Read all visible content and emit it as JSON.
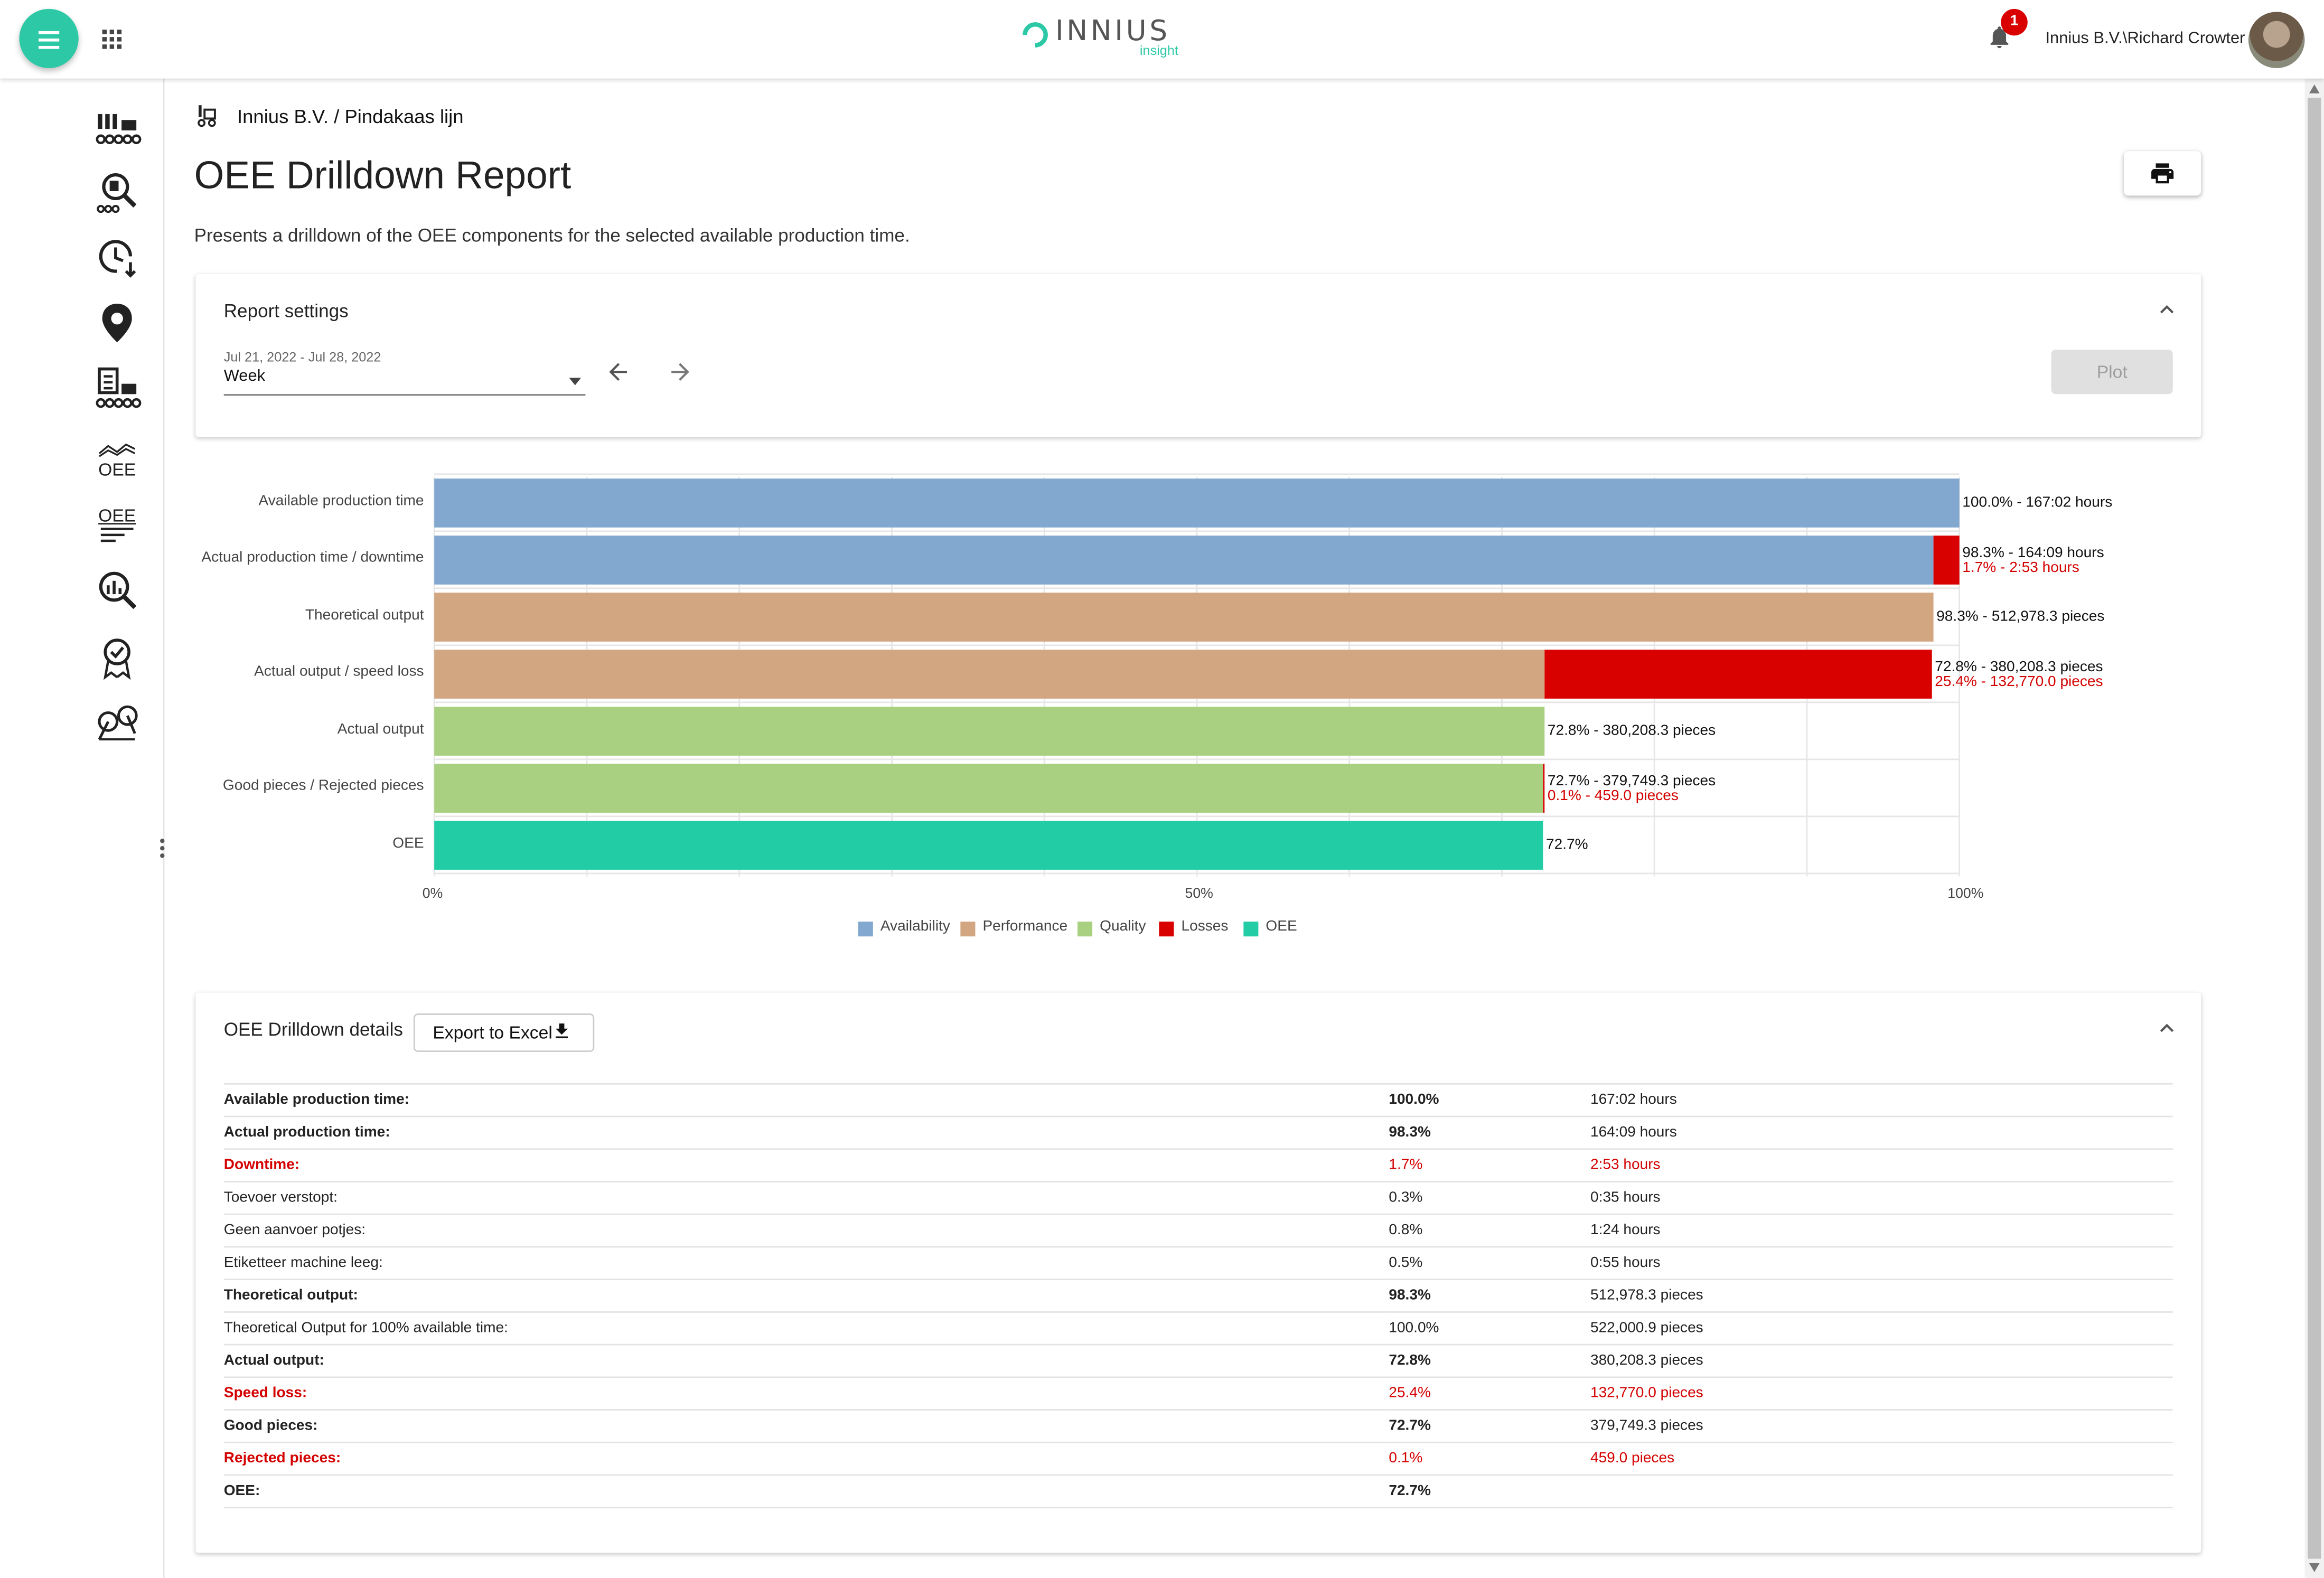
{
  "header": {
    "logo_text": "INNIUS",
    "logo_sub": "insight",
    "notification_count": "1",
    "user": "Innius B.V.\\Richard Crowter"
  },
  "sidebar": {
    "items": [
      {
        "icon": "machines-icon"
      },
      {
        "icon": "machine-search-icon"
      },
      {
        "icon": "history-clock-icon"
      },
      {
        "icon": "location-pin-icon"
      },
      {
        "icon": "report-machines-icon"
      },
      {
        "icon": "oee-trend-icon",
        "label": "OEE"
      },
      {
        "icon": "oee-report-icon",
        "label": "OEE"
      },
      {
        "icon": "analytics-search-icon"
      },
      {
        "icon": "quality-award-icon"
      },
      {
        "icon": "maintenance-icon"
      }
    ]
  },
  "breadcrumb": "Innius B.V. / Pindakaas lijn",
  "page": {
    "title": "OEE Drilldown Report",
    "description": "Presents a drilldown of the OEE components for the selected available production time."
  },
  "settings": {
    "title": "Report settings",
    "date_range": "Jul 21, 2022 - Jul 28, 2022",
    "period": "Week",
    "plot_label": "Plot"
  },
  "colors": {
    "availability": "#82a8d0",
    "performance": "#d2a680",
    "quality": "#a9d080",
    "losses": "#d90000",
    "oee": "#22cda5"
  },
  "chart_data": {
    "type": "bar",
    "orientation": "horizontal",
    "stacked": true,
    "categories": [
      "Available production time",
      "Actual production time / downtime",
      "Theoretical output",
      "Actual output / speed loss",
      "Actual output",
      "Good pieces / Rejected pieces",
      "OEE"
    ],
    "bars": [
      {
        "segments": [
          {
            "series": "Availability",
            "value": 100.0
          }
        ],
        "labels": [
          "100.0% - 167:02 hours"
        ]
      },
      {
        "segments": [
          {
            "series": "Availability",
            "value": 98.3
          },
          {
            "series": "Losses",
            "value": 1.7
          }
        ],
        "labels": [
          "98.3% - 164:09 hours",
          "1.7% - 2:53 hours"
        ]
      },
      {
        "segments": [
          {
            "series": "Performance",
            "value": 98.3
          }
        ],
        "labels": [
          "98.3% - 512,978.3 pieces"
        ]
      },
      {
        "segments": [
          {
            "series": "Performance",
            "value": 72.8
          },
          {
            "series": "Losses",
            "value": 25.4
          }
        ],
        "labels": [
          "72.8% - 380,208.3 pieces",
          "25.4% - 132,770.0 pieces"
        ]
      },
      {
        "segments": [
          {
            "series": "Quality",
            "value": 72.8
          }
        ],
        "labels": [
          "72.8% - 380,208.3 pieces"
        ]
      },
      {
        "segments": [
          {
            "series": "Quality",
            "value": 72.7
          },
          {
            "series": "Losses",
            "value": 0.1
          }
        ],
        "labels": [
          "72.7% - 379,749.3 pieces",
          "0.1% - 459.0 pieces"
        ]
      },
      {
        "segments": [
          {
            "series": "OEE",
            "value": 72.7
          }
        ],
        "labels": [
          "72.7%"
        ]
      }
    ],
    "xlim": [
      0,
      100
    ],
    "x_ticks": [
      "0%",
      "50%",
      "100%"
    ],
    "legend": [
      "Availability",
      "Performance",
      "Quality",
      "Losses",
      "OEE"
    ],
    "legend_position": "bottom",
    "grid": true
  },
  "details": {
    "title": "OEE Drilldown details",
    "export_label": "Export to Excel",
    "rows": [
      {
        "label": "Available production time:",
        "pct": "100.0%",
        "value": "167:02 hours",
        "style": "bold"
      },
      {
        "label": "Actual production time:",
        "pct": "98.3%",
        "value": "164:09 hours",
        "style": "bold"
      },
      {
        "label": "Downtime:",
        "pct": "1.7%",
        "value": "2:53 hours",
        "style": "red"
      },
      {
        "label": "Toevoer verstopt:",
        "pct": "0.3%",
        "value": "0:35 hours",
        "style": "normal"
      },
      {
        "label": "Geen aanvoer potjes:",
        "pct": "0.8%",
        "value": "1:24 hours",
        "style": "normal"
      },
      {
        "label": "Etiketteer machine leeg:",
        "pct": "0.5%",
        "value": "0:55 hours",
        "style": "normal"
      },
      {
        "label": "Theoretical output:",
        "pct": "98.3%",
        "value": "512,978.3 pieces",
        "style": "bold"
      },
      {
        "label": "Theoretical Output for 100% available time:",
        "pct": "100.0%",
        "value": "522,000.9 pieces",
        "style": "normal"
      },
      {
        "label": "Actual output:",
        "pct": "72.8%",
        "value": "380,208.3 pieces",
        "style": "bold"
      },
      {
        "label": "Speed loss:",
        "pct": "25.4%",
        "value": "132,770.0 pieces",
        "style": "red"
      },
      {
        "label": "Good pieces:",
        "pct": "72.7%",
        "value": "379,749.3 pieces",
        "style": "bold"
      },
      {
        "label": "Rejected pieces:",
        "pct": "0.1%",
        "value": "459.0 pieces",
        "style": "red"
      },
      {
        "label": "OEE:",
        "pct": "72.7%",
        "value": "",
        "style": "bold"
      }
    ]
  }
}
